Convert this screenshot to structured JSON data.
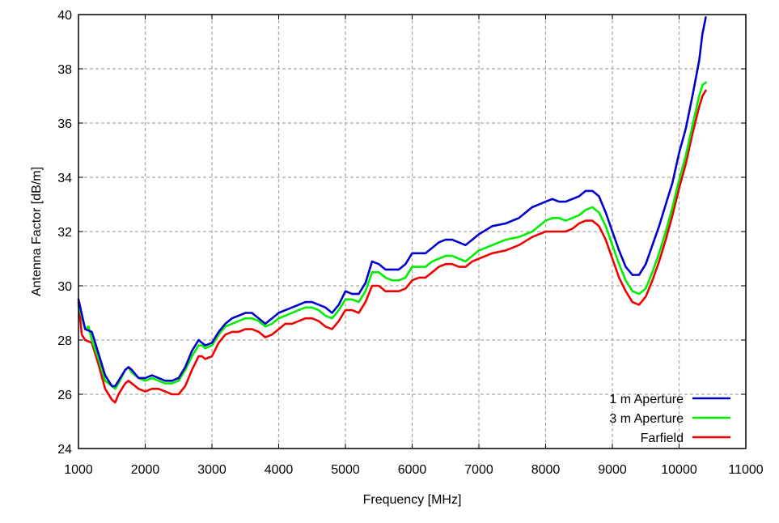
{
  "chart_data": {
    "type": "line",
    "title": "",
    "xlabel": "Frequency [MHz]",
    "ylabel": "Antenna Factor [dB/m]",
    "xlim": [
      1000,
      11000
    ],
    "ylim": [
      24,
      40
    ],
    "xticks": [
      1000,
      2000,
      3000,
      4000,
      5000,
      6000,
      7000,
      8000,
      9000,
      10000,
      11000
    ],
    "yticks": [
      24,
      26,
      28,
      30,
      32,
      34,
      36,
      38,
      40
    ],
    "grid": true,
    "legend_position": "bottom-right",
    "series": [
      {
        "name": "1 m Aperture",
        "color": "#0000cc",
        "x": [
          1000,
          1100,
          1200,
          1300,
          1400,
          1500,
          1550,
          1600,
          1700,
          1750,
          1800,
          1900,
          2000,
          2100,
          2200,
          2300,
          2400,
          2500,
          2600,
          2700,
          2800,
          2850,
          2900,
          3000,
          3100,
          3200,
          3300,
          3400,
          3500,
          3600,
          3700,
          3800,
          3900,
          4000,
          4100,
          4200,
          4300,
          4400,
          4500,
          4600,
          4700,
          4800,
          4900,
          5000,
          5100,
          5200,
          5300,
          5400,
          5500,
          5600,
          5700,
          5800,
          5900,
          6000,
          6100,
          6200,
          6300,
          6400,
          6500,
          6600,
          6700,
          6800,
          6900,
          7000,
          7200,
          7400,
          7600,
          7800,
          8000,
          8100,
          8200,
          8300,
          8400,
          8500,
          8600,
          8700,
          8800,
          8900,
          9000,
          9100,
          9200,
          9300,
          9400,
          9500,
          9600,
          9700,
          9800,
          9900,
          10000,
          10100,
          10200,
          10300,
          10350,
          10400
        ],
        "values": [
          29.5,
          28.4,
          28.3,
          27.5,
          26.7,
          26.3,
          26.3,
          26.5,
          26.9,
          27.0,
          26.9,
          26.6,
          26.6,
          26.7,
          26.6,
          26.5,
          26.5,
          26.6,
          27.0,
          27.6,
          28.0,
          27.9,
          27.8,
          27.9,
          28.3,
          28.6,
          28.8,
          28.9,
          29.0,
          29.0,
          28.8,
          28.6,
          28.8,
          29.0,
          29.1,
          29.2,
          29.3,
          29.4,
          29.4,
          29.3,
          29.2,
          29.0,
          29.3,
          29.8,
          29.7,
          29.7,
          30.1,
          30.9,
          30.8,
          30.6,
          30.6,
          30.6,
          30.8,
          31.2,
          31.2,
          31.2,
          31.4,
          31.6,
          31.7,
          31.7,
          31.6,
          31.5,
          31.7,
          31.9,
          32.2,
          32.3,
          32.5,
          32.9,
          33.1,
          33.2,
          33.1,
          33.1,
          33.2,
          33.3,
          33.5,
          33.5,
          33.3,
          32.7,
          32.0,
          31.3,
          30.7,
          30.4,
          30.4,
          30.8,
          31.5,
          32.2,
          33.0,
          33.8,
          34.9,
          35.8,
          37.0,
          38.3,
          39.3,
          39.9
        ]
      },
      {
        "name": "3 m Aperture",
        "color": "#00ee00",
        "x": [
          1000,
          1100,
          1150,
          1200,
          1300,
          1400,
          1500,
          1550,
          1600,
          1700,
          1750,
          1800,
          1900,
          2000,
          2100,
          2200,
          2300,
          2400,
          2500,
          2600,
          2700,
          2800,
          2850,
          2900,
          3000,
          3100,
          3200,
          3300,
          3400,
          3500,
          3600,
          3700,
          3800,
          3900,
          4000,
          4100,
          4200,
          4300,
          4400,
          4500,
          4600,
          4700,
          4800,
          4900,
          5000,
          5100,
          5200,
          5300,
          5400,
          5500,
          5600,
          5700,
          5800,
          5900,
          6000,
          6100,
          6200,
          6300,
          6400,
          6500,
          6600,
          6700,
          6800,
          6900,
          7000,
          7200,
          7400,
          7600,
          7800,
          8000,
          8100,
          8200,
          8300,
          8400,
          8500,
          8600,
          8700,
          8800,
          8900,
          9000,
          9100,
          9200,
          9300,
          9400,
          9500,
          9600,
          9700,
          9800,
          9900,
          10000,
          10100,
          10200,
          10300,
          10350,
          10400
        ],
        "values": [
          29.3,
          28.4,
          28.5,
          28.0,
          27.3,
          26.5,
          26.3,
          26.2,
          26.4,
          26.9,
          27.0,
          26.8,
          26.6,
          26.5,
          26.6,
          26.5,
          26.4,
          26.4,
          26.5,
          26.9,
          27.4,
          27.8,
          27.8,
          27.7,
          27.8,
          28.2,
          28.5,
          28.6,
          28.7,
          28.8,
          28.8,
          28.7,
          28.5,
          28.6,
          28.8,
          28.9,
          29.0,
          29.1,
          29.2,
          29.2,
          29.1,
          28.9,
          28.8,
          29.1,
          29.5,
          29.5,
          29.4,
          29.8,
          30.5,
          30.5,
          30.3,
          30.2,
          30.2,
          30.3,
          30.7,
          30.7,
          30.7,
          30.9,
          31.0,
          31.1,
          31.1,
          31.0,
          30.9,
          31.1,
          31.3,
          31.5,
          31.7,
          31.8,
          32.0,
          32.4,
          32.5,
          32.5,
          32.4,
          32.5,
          32.6,
          32.8,
          32.9,
          32.7,
          32.2,
          31.5,
          30.8,
          30.2,
          29.8,
          29.7,
          29.9,
          30.5,
          31.2,
          32.0,
          32.9,
          33.9,
          34.8,
          35.9,
          37.0,
          37.4,
          37.5
        ]
      },
      {
        "name": "Farfield",
        "color": "#ee0000",
        "x": [
          1000,
          1050,
          1100,
          1200,
          1300,
          1400,
          1500,
          1550,
          1600,
          1700,
          1750,
          1800,
          1900,
          2000,
          2100,
          2200,
          2300,
          2400,
          2500,
          2600,
          2700,
          2800,
          2850,
          2900,
          3000,
          3100,
          3200,
          3300,
          3400,
          3500,
          3600,
          3700,
          3800,
          3900,
          4000,
          4100,
          4200,
          4300,
          4400,
          4500,
          4600,
          4700,
          4800,
          4900,
          5000,
          5100,
          5200,
          5300,
          5400,
          5500,
          5600,
          5700,
          5800,
          5900,
          6000,
          6100,
          6200,
          6300,
          6400,
          6500,
          6600,
          6700,
          6800,
          6900,
          7000,
          7200,
          7400,
          7600,
          7800,
          8000,
          8100,
          8200,
          8300,
          8400,
          8500,
          8600,
          8700,
          8800,
          8900,
          9000,
          9100,
          9200,
          9300,
          9400,
          9500,
          9600,
          9700,
          9800,
          9900,
          10000,
          10100,
          10200,
          10300,
          10350,
          10400
        ],
        "values": [
          29.4,
          28.2,
          28.0,
          27.9,
          27.1,
          26.2,
          25.8,
          25.7,
          26.0,
          26.4,
          26.5,
          26.4,
          26.2,
          26.1,
          26.2,
          26.2,
          26.1,
          26.0,
          26.0,
          26.3,
          26.9,
          27.4,
          27.4,
          27.3,
          27.4,
          27.9,
          28.2,
          28.3,
          28.3,
          28.4,
          28.4,
          28.3,
          28.1,
          28.2,
          28.4,
          28.6,
          28.6,
          28.7,
          28.8,
          28.8,
          28.7,
          28.5,
          28.4,
          28.7,
          29.1,
          29.1,
          29.0,
          29.4,
          30.0,
          30.0,
          29.8,
          29.8,
          29.8,
          29.9,
          30.2,
          30.3,
          30.3,
          30.5,
          30.7,
          30.8,
          30.8,
          30.7,
          30.7,
          30.9,
          31.0,
          31.2,
          31.3,
          31.5,
          31.8,
          32.0,
          32.0,
          32.0,
          32.0,
          32.1,
          32.3,
          32.4,
          32.4,
          32.2,
          31.7,
          31.0,
          30.3,
          29.8,
          29.4,
          29.3,
          29.6,
          30.2,
          30.9,
          31.7,
          32.6,
          33.6,
          34.5,
          35.6,
          36.6,
          37.0,
          37.2
        ]
      }
    ]
  }
}
